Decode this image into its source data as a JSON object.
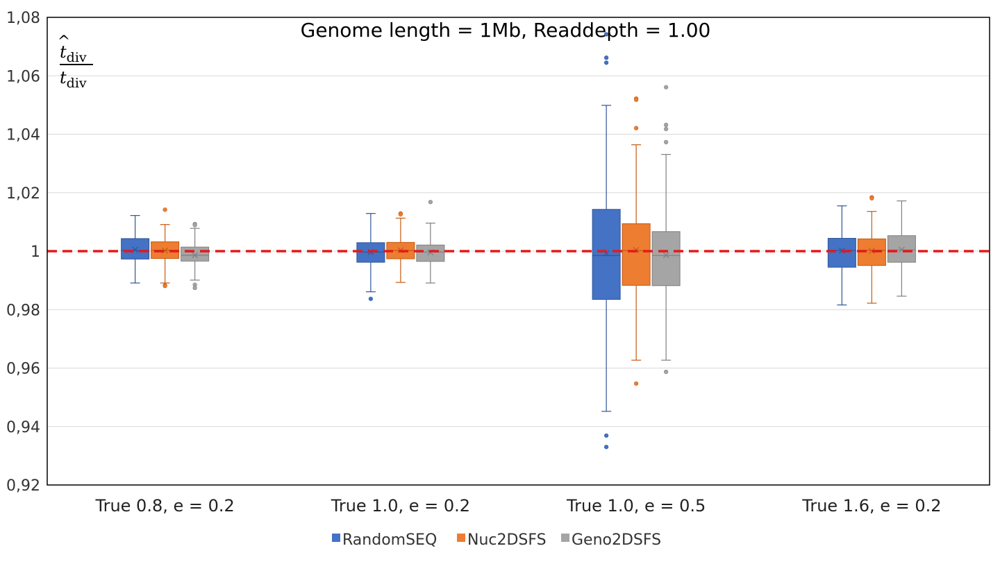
{
  "chart_data": {
    "type": "box",
    "title": "Genome length = 1Mb, Readdepth = 1.00",
    "ylabel": {
      "numerator_base": "t",
      "numerator_hat": "^",
      "denominator_base": "t",
      "subscript": "div"
    },
    "ylim": [
      0.92,
      1.08
    ],
    "yticks": [
      0.92,
      0.94,
      0.96,
      0.98,
      1.0,
      1.02,
      1.04,
      1.06,
      1.08
    ],
    "ytick_labels": [
      "0,92",
      "0,94",
      "0,96",
      "0,98",
      "1",
      "1,02",
      "1,04",
      "1,06",
      "1,08"
    ],
    "grid": "horizontal",
    "legend_position": "bottom",
    "reference_line": {
      "y": 1.0,
      "style": "dashed",
      "color": "#e31a1c"
    },
    "categories": [
      "True 0.8, e = 0.2",
      "True 1.0, e = 0.2",
      "True 1.0, e = 0.5",
      "True 1.6, e = 0.2"
    ],
    "series": [
      {
        "name": "RandomSEQ",
        "color": "#4472c4",
        "stroke": "#2f5597",
        "boxes": [
          {
            "min": 0.9891,
            "q1": 0.9973,
            "median": 1.0003,
            "q3": 1.0043,
            "max": 1.0122,
            "mean": 1.0005,
            "outliers": []
          },
          {
            "min": 0.9861,
            "q1": 0.9962,
            "median": 0.9997,
            "q3": 1.0029,
            "max": 1.0129,
            "mean": 0.9997,
            "outliers": [
              0.9837
            ]
          },
          {
            "min": 0.9452,
            "q1": 0.9835,
            "median": 0.9985,
            "q3": 1.0143,
            "max": 1.0499,
            "mean": 0.9992,
            "outliers": [
              1.0742,
              1.0662,
              1.0645,
              0.9369,
              0.933
            ]
          },
          {
            "min": 0.9816,
            "q1": 0.9945,
            "median": 1.0003,
            "q3": 1.0044,
            "max": 1.0155,
            "mean": 1.0002,
            "outliers": []
          }
        ]
      },
      {
        "name": "Nuc2DSFS",
        "color": "#ed7d31",
        "stroke": "#c55a11",
        "boxes": [
          {
            "min": 0.9891,
            "q1": 0.9975,
            "median": 1.0003,
            "q3": 1.0032,
            "max": 1.0091,
            "mean": 1.0002,
            "outliers": [
              1.0142,
              0.9883,
              0.9881
            ]
          },
          {
            "min": 0.9893,
            "q1": 0.9974,
            "median": 1.0002,
            "q3": 1.003,
            "max": 1.0113,
            "mean": 1.0003,
            "outliers": [
              1.0129,
              1.0126
            ]
          },
          {
            "min": 0.9627,
            "q1": 0.9883,
            "median": 1.0002,
            "q3": 1.0094,
            "max": 1.0364,
            "mean": 1.0004,
            "outliers": [
              1.0522,
              1.0518,
              1.0421,
              0.9547
            ]
          },
          {
            "min": 0.9822,
            "q1": 0.9951,
            "median": 1.0003,
            "q3": 1.0042,
            "max": 1.0136,
            "mean": 1.0001,
            "outliers": [
              1.0184,
              1.0181
            ]
          }
        ]
      },
      {
        "name": "Geno2DSFS",
        "color": "#a5a5a5",
        "stroke": "#7f7f7f",
        "boxes": [
          {
            "min": 0.9901,
            "q1": 0.9966,
            "median": 0.9986,
            "q3": 1.0014,
            "max": 1.0078,
            "mean": 0.9986,
            "outliers": [
              1.0093,
              1.0089,
              0.9885,
              0.9874
            ]
          },
          {
            "min": 0.9891,
            "q1": 0.9965,
            "median": 0.9997,
            "q3": 1.0021,
            "max": 1.0096,
            "mean": 0.9996,
            "outliers": [
              1.0168
            ]
          },
          {
            "min": 0.9627,
            "q1": 0.9882,
            "median": 0.9985,
            "q3": 1.0067,
            "max": 1.0331,
            "mean": 0.9986,
            "outliers": [
              1.0561,
              1.0432,
              1.0418,
              1.0373,
              0.9587
            ]
          },
          {
            "min": 0.9846,
            "q1": 0.9962,
            "median": 1.0004,
            "q3": 1.0053,
            "max": 1.0172,
            "mean": 1.0005,
            "outliers": []
          }
        ]
      }
    ]
  }
}
